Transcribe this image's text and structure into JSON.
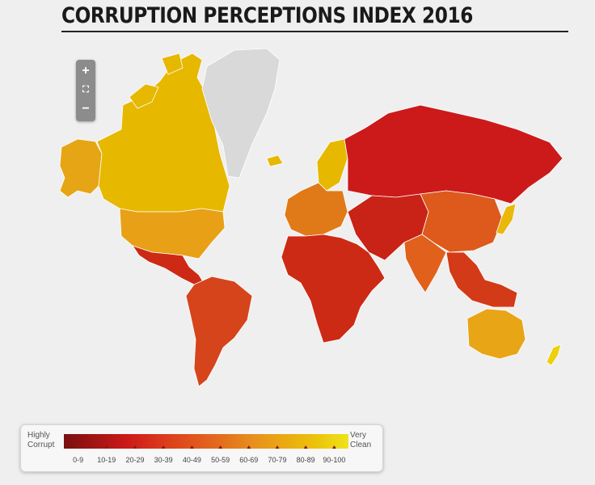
{
  "title": "CORRUPTION PERCEPTIONS INDEX 2016",
  "zoom_controls": {
    "zoom_in": "+",
    "fit": "⛶",
    "zoom_out": "−"
  },
  "legend": {
    "low_label_line1": "Highly",
    "low_label_line2": "Corrupt",
    "high_label_line1": "Very",
    "high_label_line2": "Clean",
    "ranges": [
      "0-9",
      "10-19",
      "20-29",
      "30-39",
      "40-49",
      "50-59",
      "60-69",
      "70-79",
      "80-89",
      "90-100"
    ],
    "colors": [
      "#7a1010",
      "#a31414",
      "#cc1a1a",
      "#d9361c",
      "#e0521d",
      "#e36e1e",
      "#e8901d",
      "#eaaa12",
      "#ecc40a",
      "#efe31a"
    ]
  },
  "regions": [
    {
      "name": "canada",
      "color": "#e6b800"
    },
    {
      "name": "alaska",
      "color": "#e6a514"
    },
    {
      "name": "usa",
      "color": "#e8a016"
    },
    {
      "name": "greenland",
      "color": "#d9d9d9"
    },
    {
      "name": "mexico-central-america",
      "color": "#cc2a14"
    },
    {
      "name": "south-america",
      "color": "#d6441b"
    },
    {
      "name": "europe",
      "color": "#e07a18"
    },
    {
      "name": "scandinavia",
      "color": "#e6b800"
    },
    {
      "name": "russia",
      "color": "#cc1a1a"
    },
    {
      "name": "africa",
      "color": "#cc2a14"
    },
    {
      "name": "middle-east",
      "color": "#c82316"
    },
    {
      "name": "india",
      "color": "#e0601c"
    },
    {
      "name": "china",
      "color": "#dd5a1c"
    },
    {
      "name": "southeast-asia",
      "color": "#d33a17"
    },
    {
      "name": "japan",
      "color": "#e9b80a"
    },
    {
      "name": "australia",
      "color": "#e8a516"
    },
    {
      "name": "new-zealand",
      "color": "#ecd00c"
    }
  ]
}
